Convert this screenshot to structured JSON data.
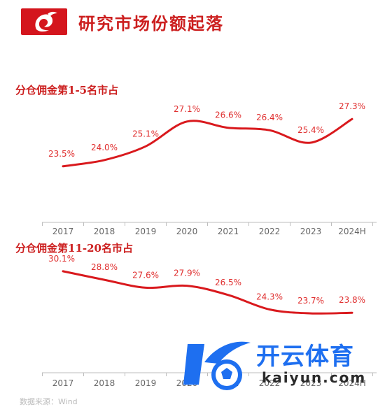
{
  "header": {
    "title": "研究市场份额起落",
    "logo_icon": "red-phoenix-logo-icon"
  },
  "source": {
    "text": "数据来源：Wind"
  },
  "watermark": {
    "text": "开云体育",
    "sub": "kaiyun.com",
    "icon": "football-k-logo-icon"
  },
  "colors": {
    "accent": "#d4151d",
    "line": "#d9191d",
    "label": "#e03030"
  },
  "chart_data": [
    {
      "type": "line",
      "title": "分仓佣金第1-5名市占",
      "categories": [
        "2017",
        "2018",
        "2019",
        "2020",
        "2021",
        "2022",
        "2023",
        "2024H"
      ],
      "values": [
        23.5,
        24.0,
        25.1,
        27.1,
        26.6,
        26.4,
        25.4,
        27.3
      ],
      "labels": [
        "23.5%",
        "24.0%",
        "25.1%",
        "27.1%",
        "26.6%",
        "26.4%",
        "25.4%",
        "27.3%"
      ],
      "ylim": [
        20,
        29
      ],
      "grid": false,
      "legend": "none"
    },
    {
      "type": "line",
      "title": "分仓佣金第11-20名市占",
      "categories": [
        "2017",
        "2018",
        "2019",
        "2020",
        "2021",
        "2022",
        "2023",
        "2024H"
      ],
      "values": [
        30.1,
        28.8,
        27.6,
        27.9,
        26.5,
        24.3,
        23.7,
        23.8
      ],
      "labels": [
        "30.1%",
        "28.8%",
        "27.6%",
        "27.9%",
        "26.5%",
        "24.3%",
        "23.7%",
        "23.8%"
      ],
      "ylim": [
        15,
        32
      ],
      "grid": false,
      "legend": "none"
    }
  ]
}
